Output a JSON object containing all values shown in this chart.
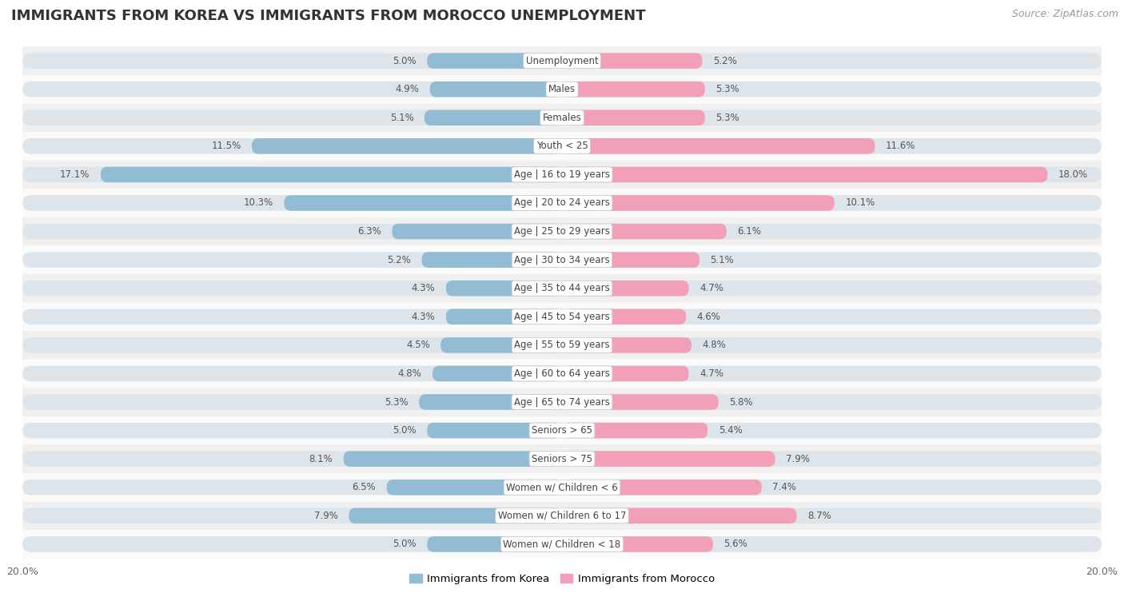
{
  "title": "IMMIGRANTS FROM KOREA VS IMMIGRANTS FROM MOROCCO UNEMPLOYMENT",
  "source": "Source: ZipAtlas.com",
  "categories": [
    "Unemployment",
    "Males",
    "Females",
    "Youth < 25",
    "Age | 16 to 19 years",
    "Age | 20 to 24 years",
    "Age | 25 to 29 years",
    "Age | 30 to 34 years",
    "Age | 35 to 44 years",
    "Age | 45 to 54 years",
    "Age | 55 to 59 years",
    "Age | 60 to 64 years",
    "Age | 65 to 74 years",
    "Seniors > 65",
    "Seniors > 75",
    "Women w/ Children < 6",
    "Women w/ Children 6 to 17",
    "Women w/ Children < 18"
  ],
  "korea_values": [
    5.0,
    4.9,
    5.1,
    11.5,
    17.1,
    10.3,
    6.3,
    5.2,
    4.3,
    4.3,
    4.5,
    4.8,
    5.3,
    5.0,
    8.1,
    6.5,
    7.9,
    5.0
  ],
  "morocco_values": [
    5.2,
    5.3,
    5.3,
    11.6,
    18.0,
    10.1,
    6.1,
    5.1,
    4.7,
    4.6,
    4.8,
    4.7,
    5.8,
    5.4,
    7.9,
    7.4,
    8.7,
    5.6
  ],
  "korea_color": "#92bcd4",
  "morocco_color": "#f2a0b8",
  "bar_bg_color": "#dde5ea",
  "row_bg_even": "#f0f0f0",
  "row_bg_odd": "#fafafa",
  "axis_limit": 20.0,
  "bar_height": 0.55,
  "legend_korea": "Immigrants from Korea",
  "legend_morocco": "Immigrants from Morocco",
  "title_fontsize": 13,
  "value_fontsize": 8.5,
  "cat_fontsize": 8.5,
  "source_fontsize": 9
}
